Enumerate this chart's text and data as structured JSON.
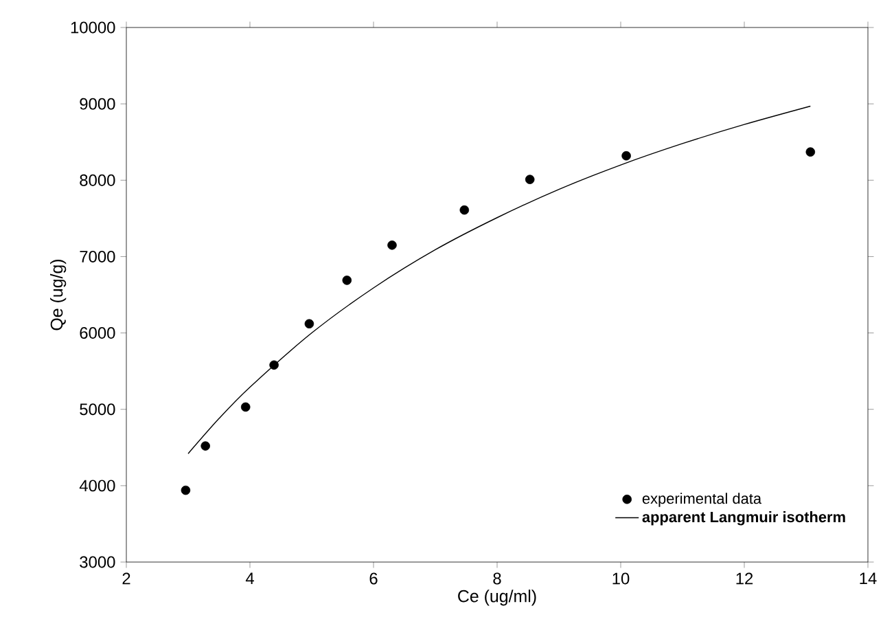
{
  "chart_data": {
    "type": "scatter",
    "xlabel": "Ce (ug/ml)",
    "ylabel": "Qe (ug/g)",
    "xlim": [
      2,
      14
    ],
    "xticks": [
      2,
      4,
      6,
      8,
      10,
      12,
      14
    ],
    "ylim": [
      3000,
      10000
    ],
    "yticks": [
      3000,
      4000,
      5000,
      6000,
      7000,
      8000,
      9000,
      10000
    ],
    "legend": "bottom right",
    "grid": false,
    "series": [
      {
        "name": "experimental data",
        "marker": "circle",
        "color": "#000000",
        "x": [
          2.96,
          3.28,
          3.93,
          4.39,
          4.96,
          5.57,
          6.3,
          7.47,
          8.53,
          10.09,
          13.07
        ],
        "values": [
          3940,
          4520,
          5030,
          5580,
          6120,
          6690,
          7150,
          7610,
          8010,
          8320,
          8370
        ]
      },
      {
        "name": "apparent Langmuir isotherm",
        "type": "line",
        "line_style": "solid",
        "color": "#000000",
        "x": [
          3,
          3.5,
          4,
          5,
          6,
          7,
          8,
          9,
          10,
          11,
          12,
          13.07
        ],
        "values": [
          4420,
          4880,
          5290,
          6000,
          6590,
          7090,
          7510,
          7880,
          8200,
          8480,
          8730,
          8970
        ]
      }
    ]
  }
}
